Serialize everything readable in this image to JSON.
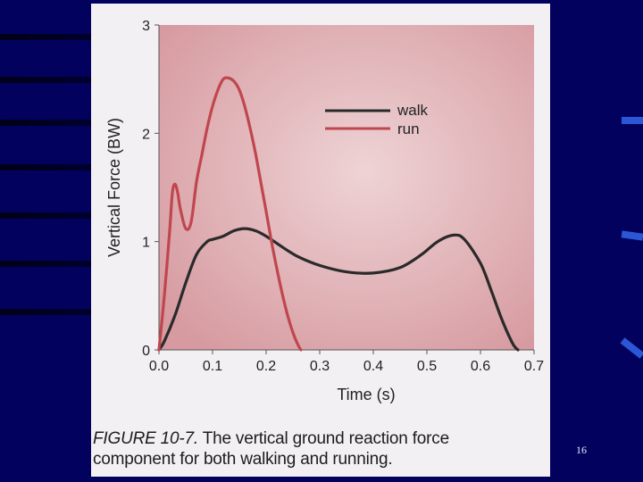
{
  "slide": {
    "number": "16"
  },
  "caption": {
    "figure_label": "FIGURE 10-7.",
    "line1": " The vertical ground reaction force",
    "line2": "component for both walking and running."
  },
  "colors": {
    "background": "#02025e",
    "plot_bg": "#d9a5a9",
    "walk": "#2a2a2a",
    "run": "#c0464e"
  },
  "chart_data": {
    "type": "line",
    "title": "",
    "xlabel": "Time (s)",
    "ylabel": "Vertical Force (BW)",
    "xlim": [
      0,
      0.7
    ],
    "ylim": [
      0,
      3
    ],
    "x_ticks": [
      "0.0",
      "0.1",
      "0.2",
      "0.3",
      "0.4",
      "0.5",
      "0.6",
      "0.7"
    ],
    "y_ticks": [
      "0",
      "1",
      "2",
      "3"
    ],
    "legend": "top-right",
    "grid": false,
    "series": [
      {
        "name": "walk",
        "x": [
          0,
          0.01,
          0.03,
          0.05,
          0.07,
          0.09,
          0.1,
          0.12,
          0.14,
          0.16,
          0.18,
          0.2,
          0.23,
          0.26,
          0.3,
          0.35,
          0.4,
          0.45,
          0.49,
          0.52,
          0.55,
          0.57,
          0.6,
          0.62,
          0.64,
          0.66,
          0.67
        ],
        "y": [
          0,
          0.08,
          0.32,
          0.62,
          0.88,
          1.0,
          1.02,
          1.05,
          1.1,
          1.12,
          1.1,
          1.05,
          0.95,
          0.86,
          0.78,
          0.72,
          0.71,
          0.76,
          0.88,
          1.0,
          1.06,
          1.02,
          0.8,
          0.55,
          0.28,
          0.06,
          0
        ]
      },
      {
        "name": "run",
        "x": [
          0,
          0.01,
          0.02,
          0.025,
          0.03,
          0.035,
          0.04,
          0.05,
          0.06,
          0.07,
          0.08,
          0.09,
          0.1,
          0.11,
          0.12,
          0.13,
          0.14,
          0.15,
          0.16,
          0.17,
          0.18,
          0.19,
          0.2,
          0.21,
          0.22,
          0.23,
          0.24,
          0.25,
          0.26,
          0.265
        ],
        "y": [
          0,
          0.5,
          1.1,
          1.45,
          1.53,
          1.45,
          1.3,
          1.12,
          1.18,
          1.55,
          1.8,
          2.05,
          2.25,
          2.4,
          2.5,
          2.51,
          2.48,
          2.4,
          2.25,
          2.05,
          1.82,
          1.55,
          1.28,
          1.0,
          0.75,
          0.52,
          0.32,
          0.16,
          0.04,
          0
        ]
      }
    ]
  }
}
